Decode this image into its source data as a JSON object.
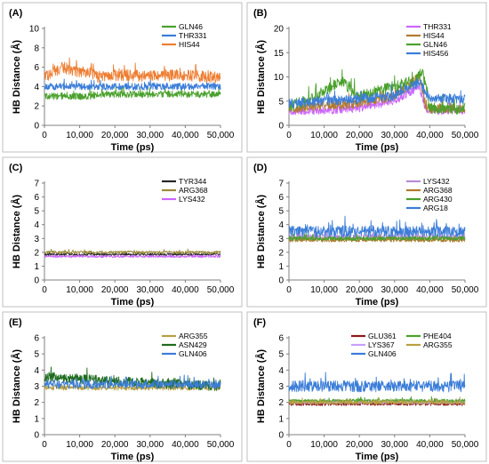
{
  "chart_data": [
    {
      "type": "line",
      "panel": "(A)",
      "xlabel": "Time (ps)",
      "ylabel": "HB Distance (Å)",
      "xlim": [
        0,
        50000
      ],
      "ylim": [
        0,
        10
      ],
      "xticks": [
        0,
        10000,
        20000,
        30000,
        40000,
        50000
      ],
      "xtick_labels": [
        "0",
        "10,000",
        "20,000",
        "30,000",
        "40,000",
        "50,000"
      ],
      "yticks": [
        0,
        2,
        4,
        6,
        8,
        10
      ],
      "ytick_labels": [
        "0",
        "2",
        "4",
        "6",
        "8",
        "10"
      ],
      "legend_position": "top-right",
      "series": [
        {
          "name": "GLN46",
          "color": "#4aa02c",
          "x": [
            0,
            5000,
            10000,
            14000,
            15000,
            20000,
            30000,
            40000,
            50000
          ],
          "y": [
            3.0,
            3.0,
            3.0,
            3.0,
            3.2,
            3.2,
            3.2,
            3.2,
            3.2
          ],
          "spread": 0.35
        },
        {
          "name": "THR331",
          "color": "#3b7dd8",
          "x": [
            0,
            5000,
            10000,
            14000,
            15000,
            20000,
            30000,
            40000,
            50000
          ],
          "y": [
            4.0,
            4.0,
            4.0,
            4.0,
            4.0,
            4.0,
            4.0,
            4.0,
            4.0
          ],
          "spread": 0.35
        },
        {
          "name": "HIS44",
          "color": "#ed7d31",
          "x": [
            0,
            5000,
            10000,
            14000,
            15000,
            20000,
            30000,
            40000,
            50000
          ],
          "y": [
            5.0,
            6.0,
            5.5,
            5.3,
            5.0,
            5.2,
            5.1,
            5.2,
            4.9
          ],
          "spread": 0.6
        }
      ]
    },
    {
      "type": "line",
      "panel": "(B)",
      "xlabel": "Time (ps)",
      "ylabel": "HB Distance (Å)",
      "xlim": [
        0,
        50000
      ],
      "ylim": [
        0,
        20
      ],
      "xticks": [
        0,
        10000,
        20000,
        30000,
        40000,
        50000
      ],
      "xtick_labels": [
        "0",
        "10,000",
        "20,000",
        "30,000",
        "40,000",
        "50,000"
      ],
      "yticks": [
        0,
        5,
        10,
        15,
        20
      ],
      "ytick_labels": [
        "0",
        "5",
        "10",
        "15",
        "20"
      ],
      "legend_position": "top-right",
      "series": [
        {
          "name": "THR331",
          "color": "#cc66ff",
          "x": [
            0,
            10000,
            20000,
            30000,
            37000,
            39000,
            50000
          ],
          "y": [
            3.0,
            3.0,
            3.5,
            5.0,
            8.0,
            3.0,
            3.0
          ],
          "spread": 0.8
        },
        {
          "name": "HIS44",
          "color": "#b07a2f",
          "x": [
            0,
            10000,
            20000,
            30000,
            37000,
            39000,
            50000
          ],
          "y": [
            3.5,
            4.0,
            4.5,
            6.0,
            10.0,
            3.5,
            3.5
          ],
          "spread": 1.0
        },
        {
          "name": "GLN46",
          "color": "#4aa02c",
          "x": [
            0,
            5000,
            10000,
            15000,
            20000,
            25000,
            30000,
            35000,
            38000,
            40000,
            50000
          ],
          "y": [
            4.0,
            5.0,
            7.0,
            9.0,
            6.0,
            7.0,
            8.0,
            9.0,
            11.0,
            3.5,
            3.5
          ],
          "spread": 1.2
        },
        {
          "name": "HIS456",
          "color": "#3b7dd8",
          "x": [
            0,
            10000,
            20000,
            30000,
            37000,
            40000,
            50000
          ],
          "y": [
            4.5,
            5.0,
            5.5,
            6.0,
            9.0,
            5.5,
            5.5
          ],
          "spread": 1.0
        }
      ]
    },
    {
      "type": "line",
      "panel": "(C)",
      "xlabel": "Time (ps)",
      "ylabel": "HB Distance (Å)",
      "xlim": [
        0,
        50000
      ],
      "ylim": [
        0,
        7
      ],
      "xticks": [
        0,
        10000,
        20000,
        30000,
        40000,
        50000
      ],
      "xtick_labels": [
        "0",
        "10,000",
        "20,000",
        "30,000",
        "40,000",
        "50,000"
      ],
      "yticks": [
        0,
        1,
        2,
        3,
        4,
        5,
        6,
        7
      ],
      "ytick_labels": [
        "0",
        "1",
        "2",
        "3",
        "4",
        "5",
        "6",
        "7"
      ],
      "legend_position": "top-right",
      "series": [
        {
          "name": "TYR344",
          "color": "#262626",
          "x": [
            0,
            50000
          ],
          "y": [
            1.85,
            1.85
          ],
          "spread": 0.08
        },
        {
          "name": "ARG368",
          "color": "#9a8a3a",
          "x": [
            0,
            50000
          ],
          "y": [
            2.0,
            2.0
          ],
          "spread": 0.1
        },
        {
          "name": "LYS432",
          "color": "#cc66ff",
          "x": [
            0,
            50000
          ],
          "y": [
            1.7,
            1.7
          ],
          "spread": 0.08
        }
      ]
    },
    {
      "type": "line",
      "panel": "(D)",
      "xlabel": "Time (ps)",
      "ylabel": "HB Distance (Å)",
      "xlim": [
        0,
        50000
      ],
      "ylim": [
        0,
        7
      ],
      "xticks": [
        0,
        10000,
        20000,
        30000,
        40000,
        50000
      ],
      "xtick_labels": [
        "0",
        "10,000",
        "20,000",
        "30,000",
        "40,000",
        "50,000"
      ],
      "yticks": [
        0,
        1,
        2,
        3,
        4,
        5,
        6,
        7
      ],
      "ytick_labels": [
        "0",
        "1",
        "2",
        "3",
        "4",
        "5",
        "6",
        "7"
      ],
      "legend_position": "top-right",
      "series": [
        {
          "name": "LYS432",
          "color": "#b58cd8",
          "x": [
            0,
            50000
          ],
          "y": [
            3.1,
            3.1
          ],
          "spread": 0.2
        },
        {
          "name": "ARG368",
          "color": "#b07a2f",
          "x": [
            0,
            50000
          ],
          "y": [
            2.9,
            2.9
          ],
          "spread": 0.15
        },
        {
          "name": "ARG430",
          "color": "#4aa02c",
          "x": [
            0,
            50000
          ],
          "y": [
            3.0,
            3.0
          ],
          "spread": 0.15
        },
        {
          "name": "ARG18",
          "color": "#3b7dd8",
          "x": [
            0,
            50000
          ],
          "y": [
            3.5,
            3.5
          ],
          "spread": 0.4
        }
      ]
    },
    {
      "type": "line",
      "panel": "(E)",
      "xlabel": "Time (ps)",
      "ylabel": "HB Distance (Å)",
      "xlim": [
        0,
        50000
      ],
      "ylim": [
        0,
        6
      ],
      "xticks": [
        0,
        10000,
        20000,
        30000,
        40000,
        50000
      ],
      "xtick_labels": [
        "0",
        "10,000",
        "20,000",
        "30,000",
        "40,000",
        "50,000"
      ],
      "yticks": [
        0,
        1,
        2,
        3,
        4,
        5,
        6
      ],
      "ytick_labels": [
        "0",
        "1",
        "2",
        "3",
        "4",
        "5",
        "6"
      ],
      "legend_position": "top-right",
      "series": [
        {
          "name": "ARG355",
          "color": "#b8a040",
          "x": [
            0,
            50000
          ],
          "y": [
            2.9,
            2.9
          ],
          "spread": 0.15
        },
        {
          "name": "ASN429",
          "color": "#1e6b1e",
          "x": [
            0,
            20000,
            50000
          ],
          "y": [
            3.6,
            3.3,
            3.0
          ],
          "spread": 0.3
        },
        {
          "name": "GLN406",
          "color": "#3b7dd8",
          "x": [
            0,
            50000
          ],
          "y": [
            3.1,
            3.1
          ],
          "spread": 0.25
        }
      ]
    },
    {
      "type": "line",
      "panel": "(F)",
      "xlabel": "Time (ps)",
      "ylabel": "HB Distance (Å)",
      "xlim": [
        0,
        50000
      ],
      "ylim": [
        0,
        6
      ],
      "xticks": [
        0,
        10000,
        20000,
        30000,
        40000,
        50000
      ],
      "xtick_labels": [
        "0",
        "10,000",
        "20,000",
        "30,000",
        "40,000",
        "50,000"
      ],
      "yticks": [
        0,
        1,
        2,
        3,
        4,
        5,
        6
      ],
      "ytick_labels": [
        "0",
        "1",
        "2",
        "3",
        "4",
        "5",
        "6"
      ],
      "legend_position": "top-right",
      "series": [
        {
          "name": "GLU361",
          "color": "#8b1a1a",
          "x": [
            0,
            50000
          ],
          "y": [
            1.9,
            1.9
          ],
          "spread": 0.1
        },
        {
          "name": "LYS367",
          "color": "#c8a0ff",
          "x": [
            0,
            50000
          ],
          "y": [
            2.0,
            2.0
          ],
          "spread": 0.1
        },
        {
          "name": "GLN406",
          "color": "#3b7dd8",
          "x": [
            0,
            50000
          ],
          "y": [
            3.0,
            3.0
          ],
          "spread": 0.35
        },
        {
          "name": "PHE404",
          "color": "#4aa02c",
          "x": [
            0,
            50000
          ],
          "y": [
            2.1,
            2.1
          ],
          "spread": 0.1
        },
        {
          "name": "ARG355",
          "color": "#b8a040",
          "x": [
            0,
            50000
          ],
          "y": [
            2.0,
            2.0
          ],
          "spread": 0.12
        }
      ]
    }
  ]
}
